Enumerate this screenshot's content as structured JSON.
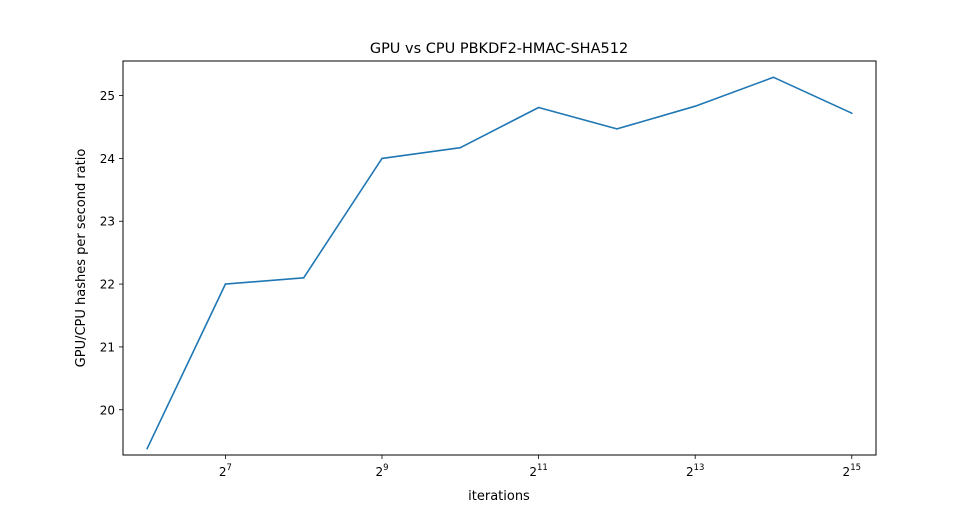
{
  "chart_data": {
    "type": "line",
    "title": "GPU vs CPU PBKDF2-HMAC-SHA512",
    "xlabel": "iterations",
    "ylabel": "GPU/CPU hashes per second ratio",
    "x_scale": "log2",
    "x": [
      64,
      128,
      256,
      512,
      1024,
      2048,
      4096,
      8192,
      16384,
      32768
    ],
    "series": [
      {
        "values": [
          19.38,
          22.0,
          22.1,
          24.0,
          24.17,
          24.81,
          24.47,
          24.83,
          25.29,
          24.72
        ],
        "color": "#1f77b4"
      }
    ],
    "xlim": [
      51.7,
      40600
    ],
    "ylim": [
      19.28,
      25.55
    ],
    "x_ticks": [
      {
        "value": 128,
        "base": "2",
        "exp": "7"
      },
      {
        "value": 512,
        "base": "2",
        "exp": "9"
      },
      {
        "value": 2048,
        "base": "2",
        "exp": "11"
      },
      {
        "value": 8192,
        "base": "2",
        "exp": "13"
      },
      {
        "value": 32768,
        "base": "2",
        "exp": "15"
      }
    ],
    "y_ticks": [
      20,
      21,
      22,
      23,
      24,
      25
    ],
    "y_tick_labels": [
      "20",
      "21",
      "22",
      "23",
      "24",
      "25"
    ],
    "grid": false,
    "legend": "none"
  }
}
